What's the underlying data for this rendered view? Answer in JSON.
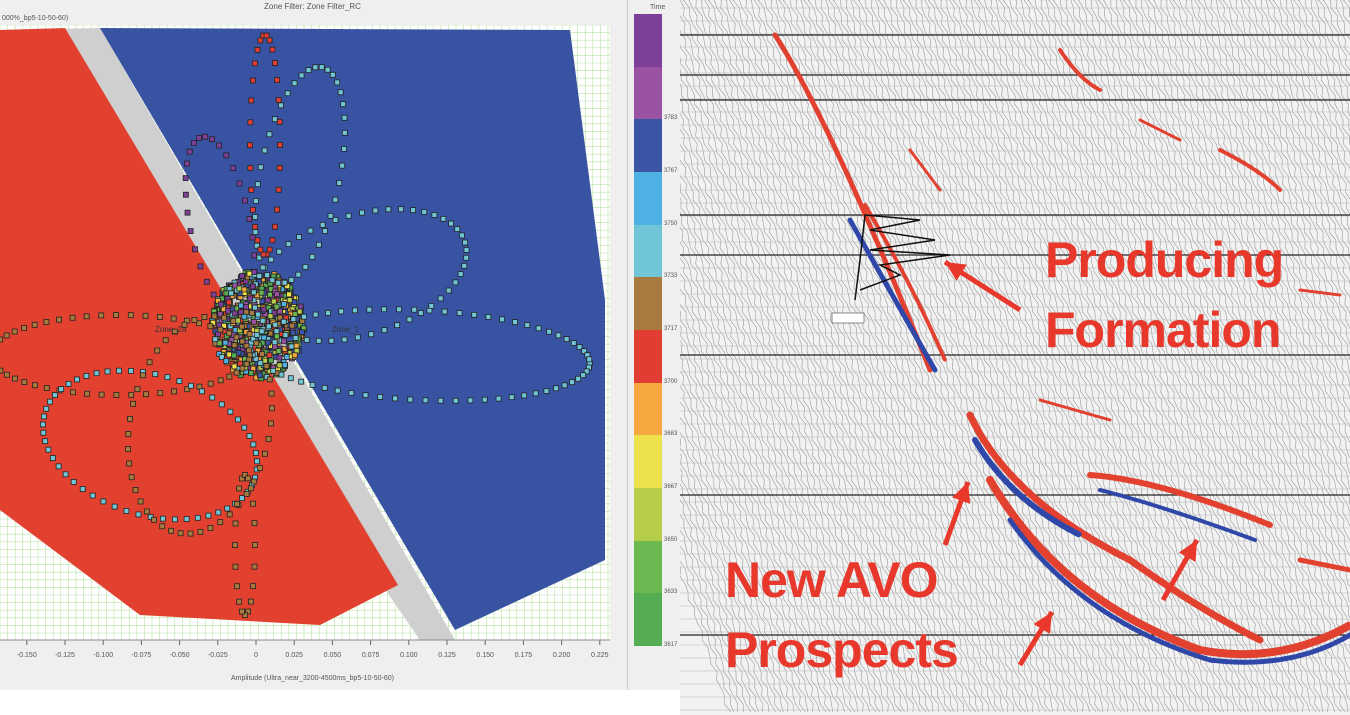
{
  "chart_data": {
    "type": "scatter",
    "title": "Zone Filter: Zone Filter_RC",
    "subtitle": "000%_bp5-10-50-60)",
    "xlabel": "Amplitude (Ultra_near_3200-4500ms_bp5-10-50-60)",
    "xlim": [
      -0.16,
      0.23
    ],
    "xticks": [
      "-0.150",
      "-0.125",
      "-0.100",
      "-0.075",
      "-0.050",
      "-0.025",
      "0",
      "0.025",
      "0.050",
      "0.075",
      "0.100",
      "0.125",
      "0.150",
      "0.175",
      "0.200",
      "0.225"
    ],
    "grid": true,
    "zones": [
      {
        "name": "Zone_2a",
        "color": "#e2412f"
      },
      {
        "name": "Zone_1",
        "color": "#3953a3"
      }
    ],
    "zone_gap_color": "#cfcfcf",
    "colorbar": {
      "title": "Time",
      "labels": [
        "3783",
        "3767",
        "3750",
        "3733",
        "3717",
        "3700",
        "3683",
        "3667",
        "3650",
        "3633",
        "3617"
      ],
      "colors": [
        "#7d3f97",
        "#9a52a3",
        "#3a55a5",
        "#4db2e3",
        "#70c6d6",
        "#a87a3e",
        "#e13d32",
        "#f6a93f",
        "#eee24c",
        "#b6cd4c",
        "#6cb850",
        "#54ad52"
      ]
    }
  },
  "seismic": {
    "annotations": [
      {
        "text": "Producing"
      },
      {
        "text": "Formation"
      },
      {
        "text": "New AVO"
      },
      {
        "text": "Prospects"
      }
    ],
    "event_colors": {
      "positive": "#e2412f",
      "negative": "#2f47a8"
    }
  }
}
